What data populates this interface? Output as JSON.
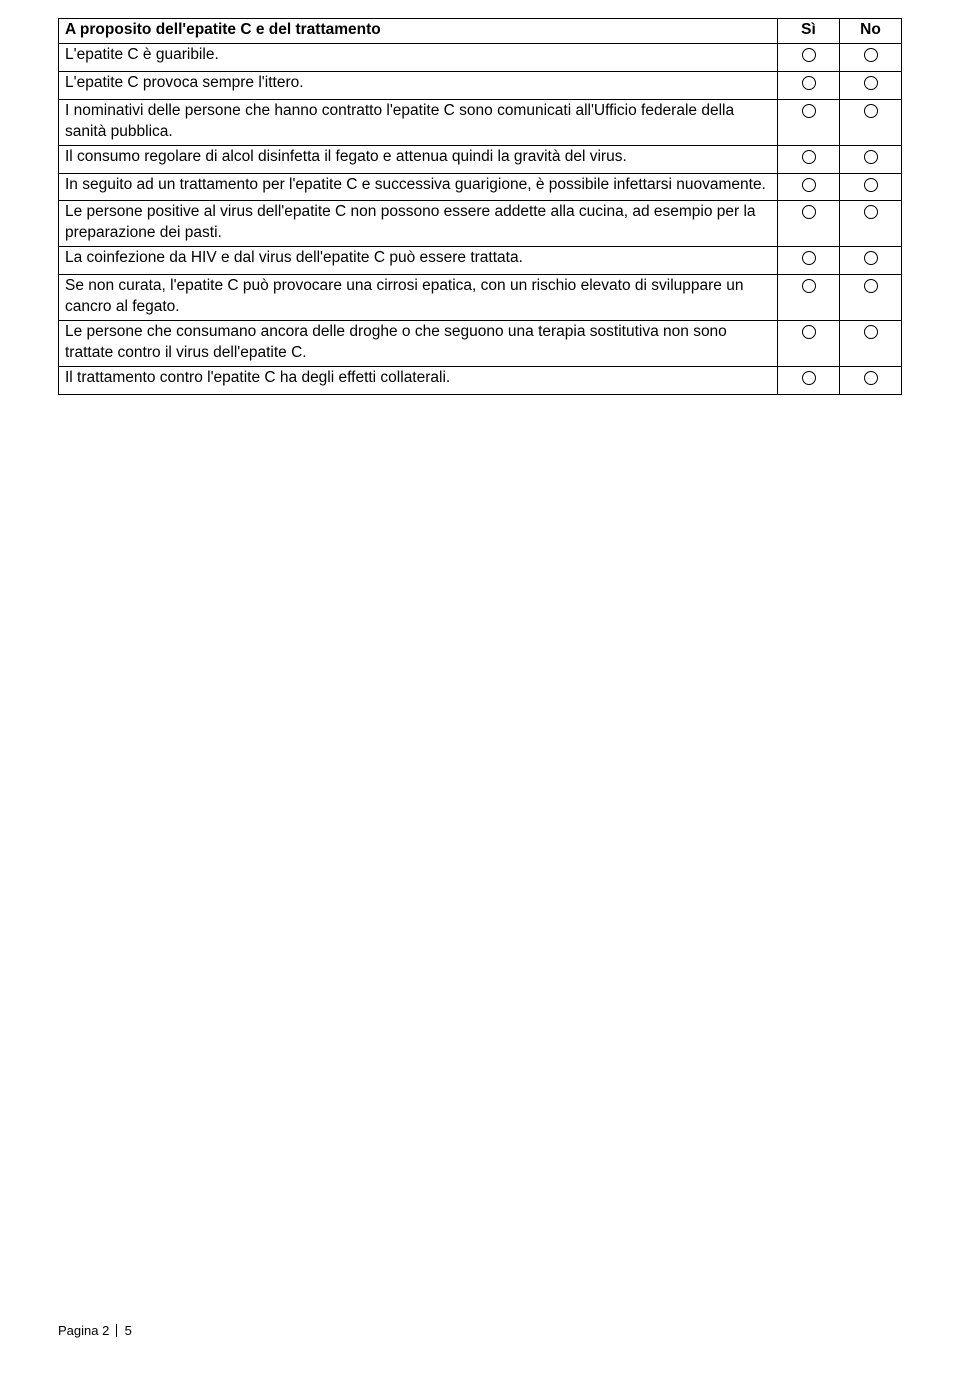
{
  "table": {
    "header": {
      "title": "A proposito dell'epatite C e del trattamento",
      "yes": "Sì",
      "no": "No"
    },
    "rows": [
      {
        "text": "L'epatite C è guaribile.",
        "justify": false
      },
      {
        "text": "L'epatite C provoca sempre l'ittero.",
        "justify": false
      },
      {
        "text": "I nominativi delle persone che hanno contratto l'epatite C sono comunicati all'Ufficio federale della sanità pubblica.",
        "justify": false
      },
      {
        "text": "Il consumo regolare di alcol disinfetta il fegato e attenua quindi la gravità del virus.",
        "justify": false
      },
      {
        "text": "In seguito ad un trattamento per l'epatite C e successiva guarigione, è possibile infettarsi nuovamente.",
        "justify": true
      },
      {
        "text": "Le persone positive al virus dell'epatite C non possono essere addette alla cucina, ad esempio per la preparazione dei pasti.",
        "justify": false
      },
      {
        "text": "La coinfezione da HIV e dal virus dell'epatite C può essere trattata.",
        "justify": false
      },
      {
        "text": "Se non curata, l'epatite C può provocare una cirrosi epatica, con un rischio elevato di sviluppare un cancro al fegato.",
        "justify": false
      },
      {
        "text": "Le persone che consumano ancora delle droghe o che seguono una terapia sostitutiva non sono trattate contro il virus dell'epatite C.",
        "justify": false
      },
      {
        "text": "Il trattamento contro l'epatite C ha degli effetti collaterali.",
        "justify": false
      }
    ]
  },
  "footer": {
    "page_label": "Pagina",
    "page_current": "2",
    "page_total": "5"
  }
}
